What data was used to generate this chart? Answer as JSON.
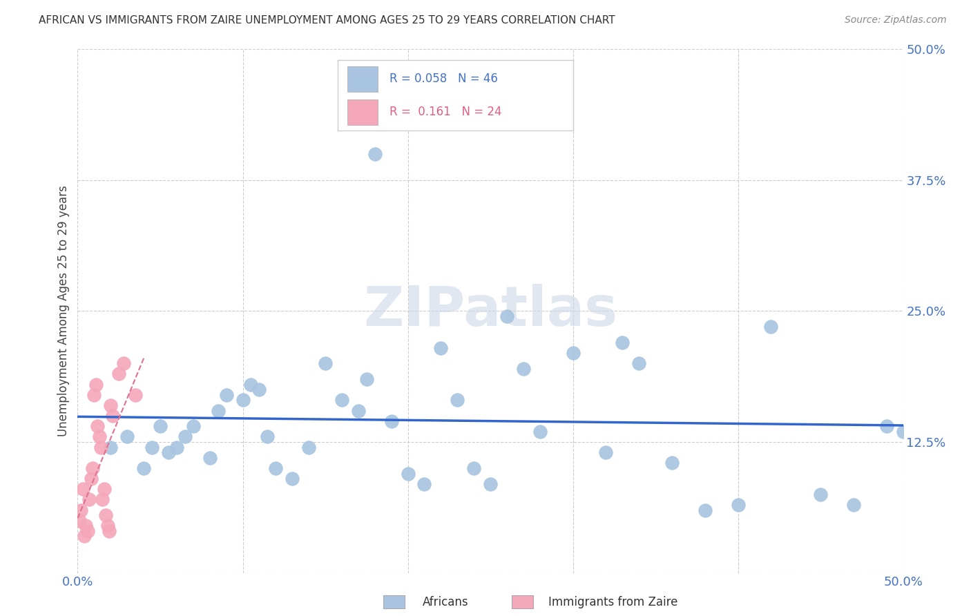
{
  "title": "AFRICAN VS IMMIGRANTS FROM ZAIRE UNEMPLOYMENT AMONG AGES 25 TO 29 YEARS CORRELATION CHART",
  "source": "Source: ZipAtlas.com",
  "ylabel": "Unemployment Among Ages 25 to 29 years",
  "xlim": [
    0.0,
    0.5
  ],
  "ylim": [
    0.0,
    0.5
  ],
  "r_african": 0.058,
  "n_african": 46,
  "r_zaire": 0.161,
  "n_zaire": 24,
  "african_color": "#a8c4e0",
  "zaire_color": "#f4a7b9",
  "african_line_color": "#3366cc",
  "zaire_line_color": "#e07090",
  "african_x": [
    0.02,
    0.03,
    0.04,
    0.045,
    0.05,
    0.055,
    0.06,
    0.065,
    0.07,
    0.08,
    0.085,
    0.09,
    0.1,
    0.105,
    0.11,
    0.115,
    0.12,
    0.13,
    0.14,
    0.15,
    0.16,
    0.17,
    0.175,
    0.18,
    0.19,
    0.2,
    0.21,
    0.22,
    0.23,
    0.24,
    0.25,
    0.26,
    0.27,
    0.28,
    0.3,
    0.32,
    0.33,
    0.34,
    0.36,
    0.38,
    0.4,
    0.42,
    0.45,
    0.47,
    0.49,
    0.5
  ],
  "african_y": [
    0.12,
    0.13,
    0.1,
    0.12,
    0.14,
    0.115,
    0.12,
    0.13,
    0.14,
    0.11,
    0.155,
    0.17,
    0.165,
    0.18,
    0.175,
    0.13,
    0.1,
    0.09,
    0.12,
    0.2,
    0.165,
    0.155,
    0.185,
    0.4,
    0.145,
    0.095,
    0.085,
    0.215,
    0.165,
    0.1,
    0.085,
    0.245,
    0.195,
    0.135,
    0.21,
    0.115,
    0.22,
    0.2,
    0.105,
    0.06,
    0.065,
    0.235,
    0.075,
    0.065,
    0.14,
    0.135
  ],
  "zaire_x": [
    0.001,
    0.002,
    0.003,
    0.004,
    0.005,
    0.006,
    0.007,
    0.008,
    0.009,
    0.01,
    0.011,
    0.012,
    0.013,
    0.014,
    0.015,
    0.016,
    0.017,
    0.018,
    0.019,
    0.02,
    0.021,
    0.025,
    0.028,
    0.035
  ],
  "zaire_y": [
    0.05,
    0.06,
    0.08,
    0.035,
    0.045,
    0.04,
    0.07,
    0.09,
    0.1,
    0.17,
    0.18,
    0.14,
    0.13,
    0.12,
    0.07,
    0.08,
    0.055,
    0.045,
    0.04,
    0.16,
    0.15,
    0.19,
    0.2,
    0.17
  ],
  "background_color": "#ffffff",
  "grid_color": "#cccccc"
}
